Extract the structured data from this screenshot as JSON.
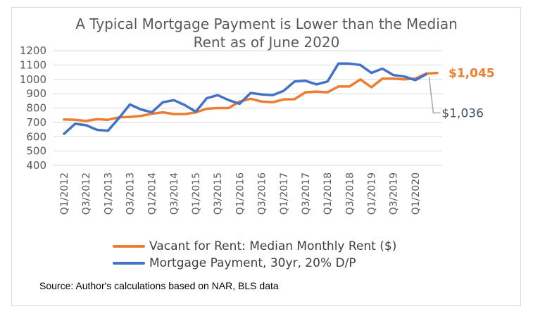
{
  "chart_data": {
    "type": "line",
    "title_line1": "A Typical Mortgage Payment is Lower than the Median",
    "title_line2": "Rent as of June 2020",
    "source": "Source: Author's calculations based on NAR, BLS data",
    "ylim": [
      400,
      1200
    ],
    "yticks": [
      400,
      500,
      600,
      700,
      800,
      900,
      1000,
      1100,
      1200
    ],
    "grid": true,
    "legend_position": "bottom",
    "x_tick_labels": [
      "Q1/2012",
      "Q3/2012",
      "Q1/2013",
      "Q3/2013",
      "Q1/2014",
      "Q3/2014",
      "Q1/2015",
      "Q3/2015",
      "Q1/2016",
      "Q3/2016",
      "Q1/2017",
      "Q3/2017",
      "Q1/2018",
      "Q3/2018",
      "Q1/2019",
      "Q3/2019",
      "Q1/2020"
    ],
    "x_tick_step": 2,
    "num_points": 35,
    "series": [
      {
        "name": "Vacant for Rent: Median Monthly Rent ($)",
        "color": "#ed7d31",
        "end_label": "$1,045",
        "values": [
          720,
          718,
          710,
          722,
          718,
          735,
          738,
          745,
          760,
          770,
          758,
          758,
          770,
          795,
          800,
          800,
          845,
          865,
          845,
          840,
          860,
          862,
          910,
          915,
          910,
          950,
          950,
          1000,
          945,
          1005,
          1005,
          1000,
          1005,
          1040,
          1045
        ]
      },
      {
        "name": "Mortgage Payment, 30yr, 20% D/P",
        "color": "#4472c4",
        "end_label": "$1,036",
        "values": [
          620,
          690,
          680,
          648,
          642,
          730,
          825,
          790,
          770,
          840,
          855,
          820,
          775,
          868,
          890,
          855,
          830,
          905,
          895,
          890,
          920,
          985,
          990,
          965,
          985,
          1110,
          1110,
          1100,
          1045,
          1075,
          1030,
          1020,
          995,
          1036,
          null
        ]
      }
    ]
  }
}
